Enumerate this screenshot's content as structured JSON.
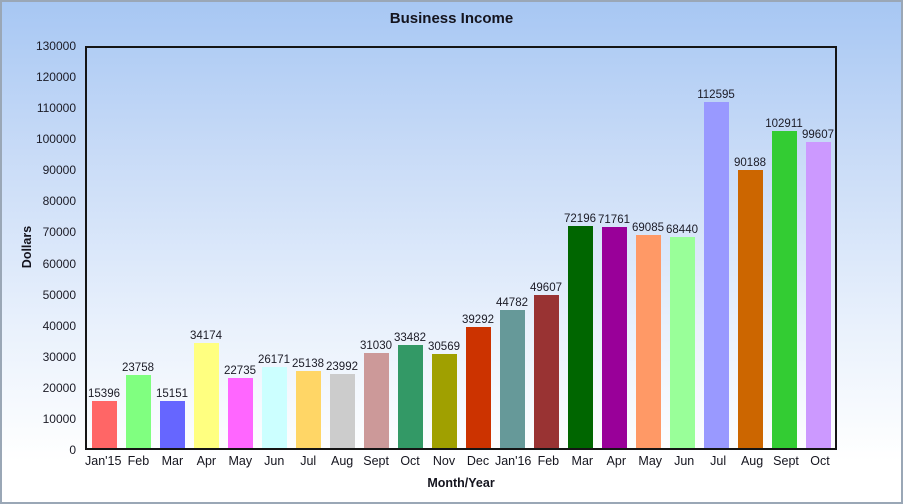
{
  "chart_data": {
    "type": "bar",
    "title": "Business Income",
    "xlabel": "Month/Year",
    "ylabel": "Dollars",
    "ylim": [
      0,
      130000
    ],
    "ytick_step": 10000,
    "grid": false,
    "legend": "none",
    "categories": [
      "Jan'15",
      "Feb",
      "Mar",
      "Apr",
      "May",
      "Jun",
      "Jul",
      "Aug",
      "Sept",
      "Oct",
      "Nov",
      "Dec",
      "Jan'16",
      "Feb",
      "Mar",
      "Apr",
      "May",
      "Jun",
      "Jul",
      "Aug",
      "Sept",
      "Oct"
    ],
    "values": [
      15396,
      23758,
      15151,
      34174,
      22735,
      26171,
      25138,
      23992,
      31030,
      33482,
      30569,
      39292,
      44782,
      49607,
      72196,
      71761,
      69085,
      68440,
      112595,
      90188,
      102911,
      99607
    ],
    "colors": [
      "#ff6666",
      "#80ff80",
      "#6666ff",
      "#ffff80",
      "#ff66ff",
      "#ccffff",
      "#ffd666",
      "#cccccc",
      "#cc9999",
      "#339966",
      "#a0a000",
      "#cc3300",
      "#669999",
      "#993333",
      "#006600",
      "#990099",
      "#ff9966",
      "#99ff99",
      "#9999ff",
      "#cc6600",
      "#33cc33",
      "#cc99ff"
    ],
    "background_top_color": "#a7c7f3",
    "background_bottom_color": "#ffffff"
  }
}
